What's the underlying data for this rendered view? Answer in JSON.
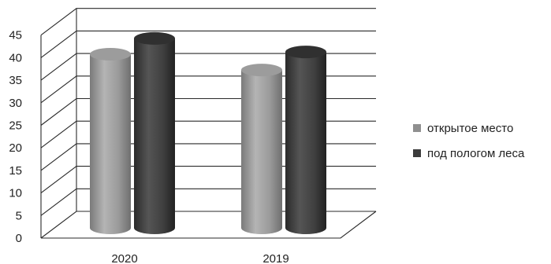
{
  "chart_data": {
    "type": "bar",
    "categories": [
      "2020",
      "2019"
    ],
    "series": [
      {
        "name": "открытое место",
        "values": [
          38.5,
          35
        ],
        "color": "#8f8f8f"
      },
      {
        "name": "под пологом леса",
        "values": [
          42,
          39
        ],
        "color": "#3c3c3c"
      }
    ],
    "ylim": [
      0,
      45
    ],
    "yticks": [
      "0",
      "5",
      "10",
      "15",
      "20",
      "25",
      "30",
      "35",
      "40",
      "45"
    ],
    "grid": true,
    "legend_position": "right",
    "style": "3d-cylinder"
  }
}
